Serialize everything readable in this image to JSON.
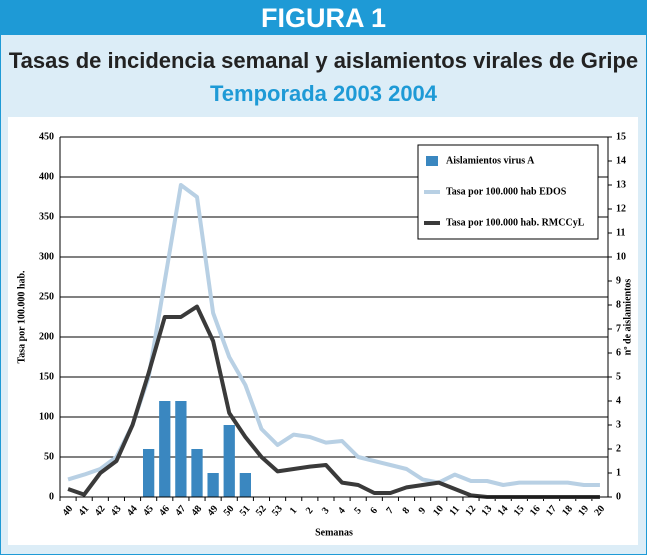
{
  "banner": "FIGURA 1",
  "chart_data": {
    "type": "combo",
    "title": "Tasas de incidencia semanal y aislamientos virales de Gripe",
    "subtitle": "Temporada 2003 2004",
    "y_label": "Tasa por 100.000 hab.",
    "y2_label": "nº de aislamientos",
    "x_label": "Semanas",
    "categories": [
      "40",
      "41",
      "42",
      "43",
      "44",
      "45",
      "46",
      "47",
      "48",
      "49",
      "50",
      "51",
      "52",
      "53",
      "1",
      "2",
      "3",
      "4",
      "5",
      "6",
      "7",
      "8",
      "9",
      "10",
      "11",
      "12",
      "13",
      "14",
      "15",
      "16",
      "17",
      "18",
      "19",
      "20"
    ],
    "ylim": [
      0,
      450
    ],
    "yticks": [
      0,
      50,
      100,
      150,
      200,
      250,
      300,
      350,
      400,
      450
    ],
    "y2lim": [
      0,
      15
    ],
    "y2ticks": [
      0,
      1,
      2,
      3,
      4,
      5,
      6,
      7,
      8,
      9,
      10,
      11,
      12,
      13,
      14,
      15
    ],
    "grid": true,
    "legend": "top-right",
    "series": [
      {
        "name": "Aislamientos virus A",
        "type": "bar",
        "axis": "y2",
        "color": "#3a87c0",
        "values": [
          0,
          0,
          0,
          0,
          0,
          2,
          4,
          4,
          2,
          1,
          3,
          1,
          0,
          0,
          0,
          0,
          0,
          0,
          0,
          0,
          0,
          0,
          0,
          0,
          0,
          0,
          0,
          0,
          0,
          0,
          0,
          0,
          0,
          0
        ]
      },
      {
        "name": "Tasa por 100.000 hab EDOS",
        "type": "line",
        "color": "#b8d0e4",
        "values": [
          22,
          28,
          35,
          50,
          90,
          150,
          270,
          390,
          375,
          230,
          175,
          140,
          85,
          65,
          78,
          75,
          68,
          70,
          50,
          45,
          40,
          35,
          22,
          18,
          28,
          20,
          20,
          15,
          18,
          18,
          18,
          18,
          15,
          15
        ]
      },
      {
        "name": "Tasa por 100.000 hab. RMCCyL",
        "type": "line",
        "color": "#3a3a3a",
        "values": [
          10,
          3,
          30,
          45,
          90,
          155,
          225,
          225,
          238,
          195,
          105,
          75,
          50,
          32,
          35,
          38,
          40,
          18,
          15,
          5,
          5,
          12,
          15,
          18,
          10,
          2,
          0,
          0,
          0,
          0,
          0,
          0,
          0,
          0
        ]
      }
    ]
  }
}
